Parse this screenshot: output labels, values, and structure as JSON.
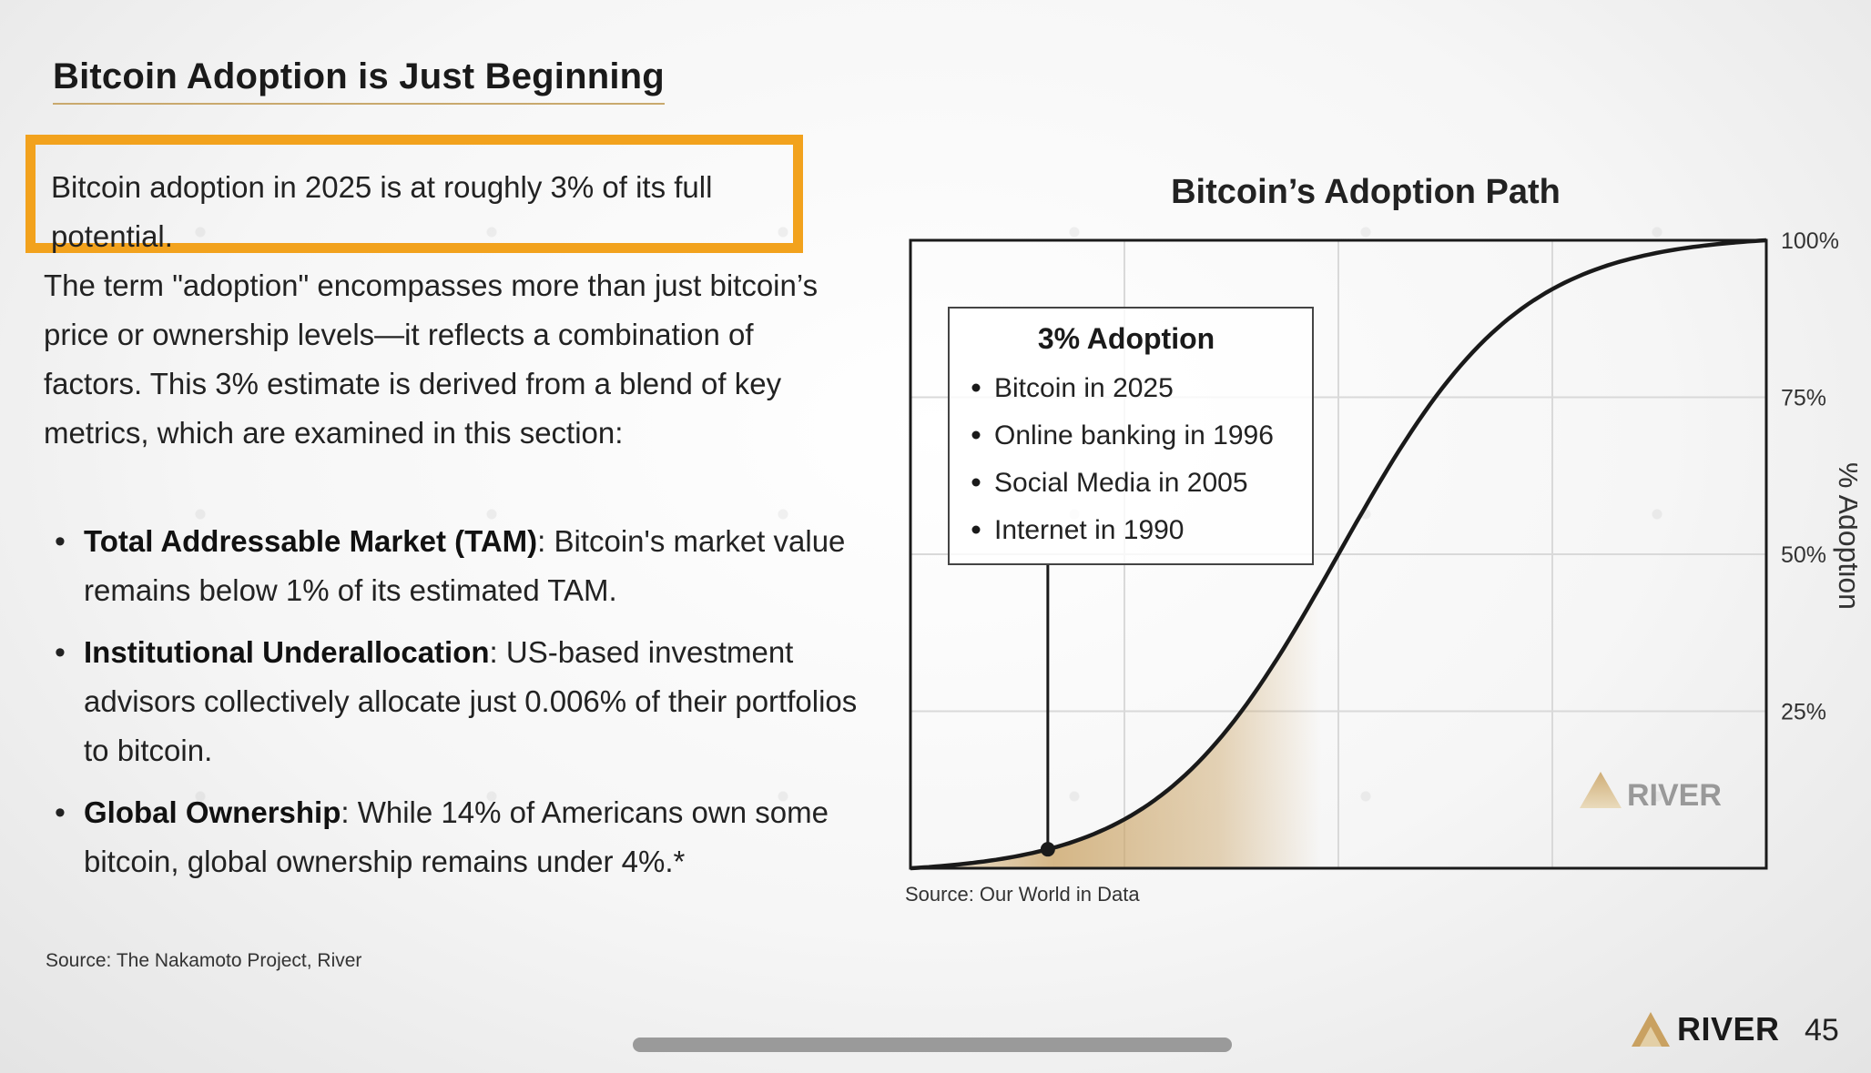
{
  "slide": {
    "title": "Bitcoin Adoption is Just Beginning",
    "callout": "Bitcoin adoption in 2025 is at roughly 3% of its full potential.",
    "body": "The term \"adoption\" encompasses more than just bitcoin’s price or ownership levels—it reflects a combination of factors. This 3% estimate is derived from a blend of key metrics, which are examined in this section:",
    "bullets": [
      {
        "term": "Total Addressable Market (TAM)",
        "text": ": Bitcoin's market value remains below 1% of its estimated TAM."
      },
      {
        "term": "Institutional Underallocation",
        "text": ": US-based investment advisors collectively allocate just 0.006% of their portfolios to bitcoin."
      },
      {
        "term": "Global Ownership",
        "text": ": While 14% of Americans own some bitcoin, global ownership remains under 4%.*"
      }
    ],
    "source_left": "Source: The Nakamoto Project, River",
    "page_number": "45",
    "brand": "RIVER"
  },
  "chart_data": {
    "type": "line",
    "title": "Bitcoin’s Adoption Path",
    "ylabel": "% Adoption",
    "ylim": [
      0,
      100
    ],
    "y_ticks": [
      {
        "value": 25,
        "label": "25%"
      },
      {
        "value": 50,
        "label": "50%"
      },
      {
        "value": 75,
        "label": "75%"
      },
      {
        "value": 100,
        "label": "100%"
      }
    ],
    "grid": true,
    "curve": "s-curve",
    "highlight_point": {
      "y": 3
    },
    "annotation": {
      "title": "3% Adoption",
      "items": [
        "Bitcoin in 2025",
        "Online banking in 1996",
        "Social Media in 2005",
        "Internet in 1990"
      ]
    },
    "source": "Source: Our World in Data",
    "watermark": "RIVER",
    "colors": {
      "line": "#1a1a1a",
      "fill": "#c9a161",
      "grid": "#d9d9d9",
      "accent": "#f2a21d"
    }
  }
}
